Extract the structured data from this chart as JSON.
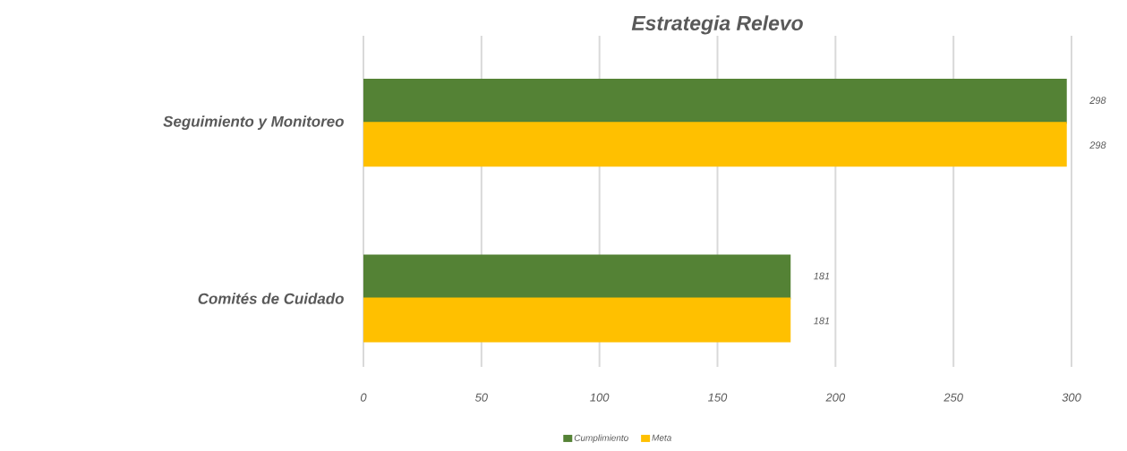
{
  "chart_data": {
    "type": "bar",
    "orientation": "horizontal",
    "title": "Estrategia Relevo",
    "categories": [
      "Seguimiento y Monitoreo",
      "Comités de Cuidado"
    ],
    "series": [
      {
        "name": "Cumplimiento",
        "color": "#548235",
        "values": [
          298,
          181
        ]
      },
      {
        "name": "Meta",
        "color": "#ffc000",
        "values": [
          298,
          181
        ]
      }
    ],
    "xlim": [
      0,
      300
    ],
    "xticks": [
      0,
      50,
      100,
      150,
      200,
      250,
      300
    ],
    "grid": "x",
    "legend": "bottom",
    "data_labels": true
  }
}
